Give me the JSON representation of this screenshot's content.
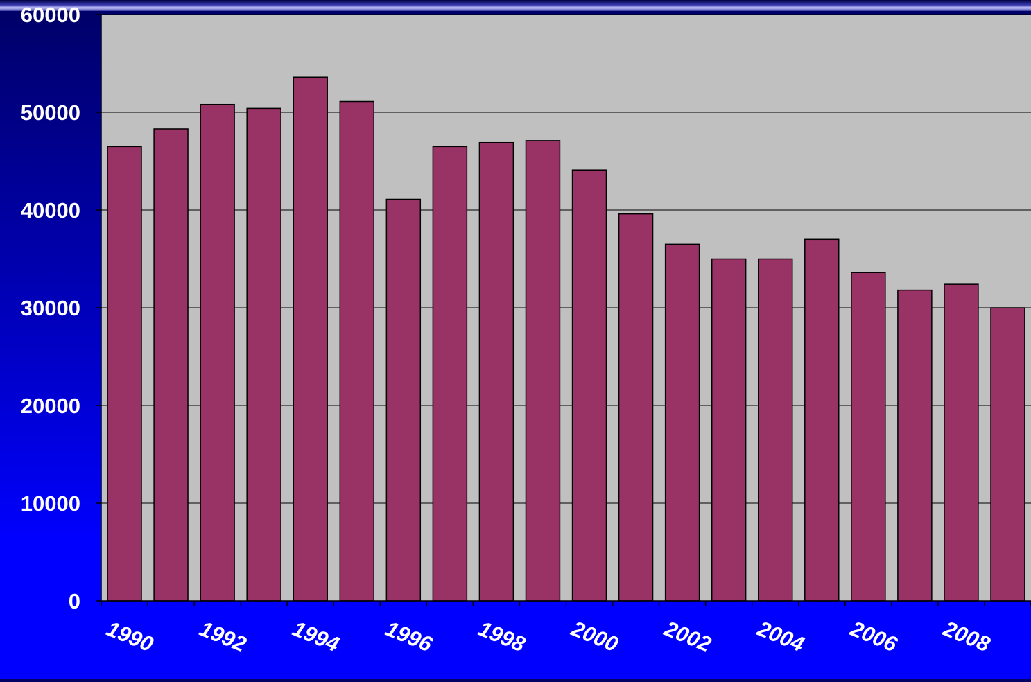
{
  "chart_data": {
    "type": "bar",
    "title": "",
    "xlabel": "",
    "ylabel": "",
    "ylim": [
      0,
      60000
    ],
    "yticks": [
      0,
      10000,
      20000,
      30000,
      40000,
      50000,
      60000
    ],
    "ytick_labels": [
      "0",
      "10000",
      "20000",
      "30000",
      "40000",
      "50000",
      "60000"
    ],
    "categories": [
      "1990",
      "1991",
      "1992",
      "1993",
      "1994",
      "1995",
      "1996",
      "1997",
      "1998",
      "1999",
      "2000",
      "2001",
      "2002",
      "2003",
      "2004",
      "2005",
      "2006",
      "2007",
      "2008",
      "2009"
    ],
    "xtick_labels": [
      "1990",
      "",
      "1992",
      "",
      "1994",
      "",
      "1996",
      "",
      "1998",
      "",
      "2000",
      "",
      "2002",
      "",
      "2004",
      "",
      "2006",
      "",
      "2008",
      ""
    ],
    "values": [
      46500,
      48300,
      50800,
      50400,
      53600,
      51100,
      41100,
      46500,
      46900,
      47100,
      44100,
      39600,
      36500,
      35000,
      35000,
      37000,
      33600,
      31800,
      32400,
      30000
    ],
    "grid": true,
    "colors": {
      "bar_fill": "#993366",
      "bar_stroke": "#000000",
      "plot_bg": "#c0c0c0",
      "gridline": "#000000",
      "tick_text": "#ffffff"
    }
  }
}
